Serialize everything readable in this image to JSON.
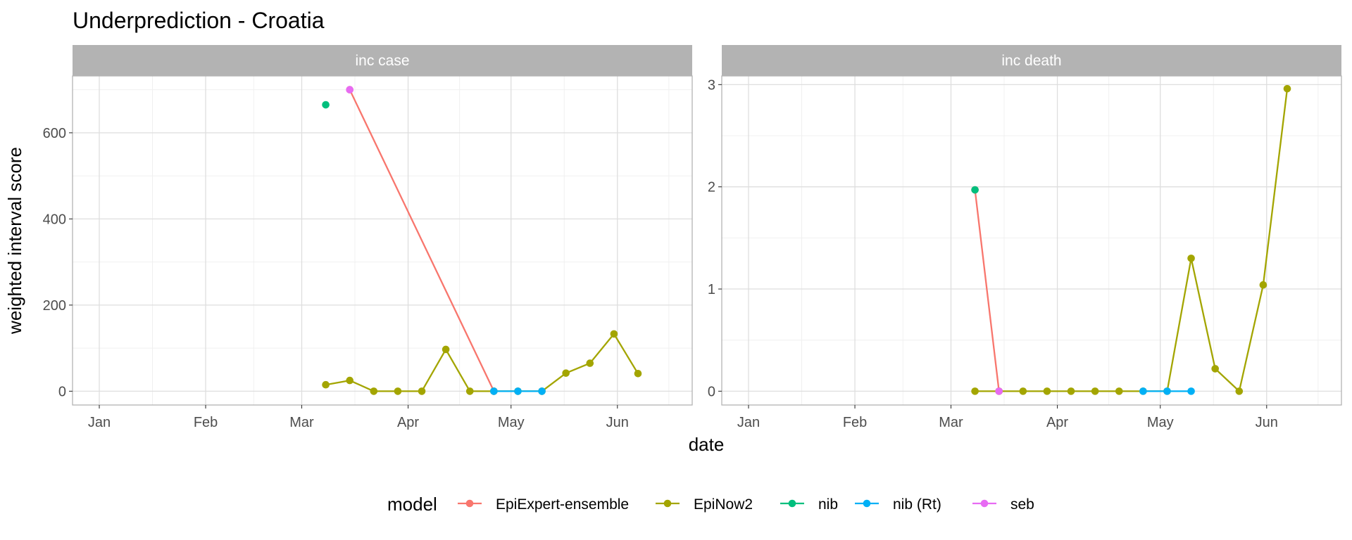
{
  "chart_data": {
    "type": "line",
    "title": "Underprediction - Croatia",
    "xlabel": "date",
    "ylabel": "weighted interval score",
    "x_ticks": [
      "Jan",
      "Feb",
      "Mar",
      "Apr",
      "May",
      "Jun"
    ],
    "x_range": [
      "2021-01-01",
      "2021-06-15"
    ],
    "legend": {
      "title": "model",
      "placement": "bottom",
      "entries": [
        {
          "name": "EpiExpert-ensemble",
          "color": "#F8766D"
        },
        {
          "name": "EpiNow2",
          "color": "#A3A500"
        },
        {
          "name": "nib",
          "color": "#00BF7D"
        },
        {
          "name": "nib (Rt)",
          "color": "#00B0F6"
        },
        {
          "name": "seb",
          "color": "#E76BF3"
        }
      ]
    },
    "grid": true,
    "panels": [
      {
        "label": "inc case",
        "y_ticks": [
          0,
          200,
          400,
          600
        ],
        "ylim": [
          -32,
          732
        ],
        "series": [
          {
            "name": "EpiExpert-ensemble",
            "color": "#F8766D",
            "points": [
              [
                "2021-03-15",
                700
              ],
              [
                "2021-04-26",
                0
              ]
            ]
          },
          {
            "name": "EpiNow2",
            "color": "#A3A500",
            "points": [
              [
                "2021-03-08",
                15
              ],
              [
                "2021-03-15",
                25
              ],
              [
                "2021-03-22",
                0
              ],
              [
                "2021-03-29",
                0
              ],
              [
                "2021-04-05",
                0
              ],
              [
                "2021-04-12",
                97
              ],
              [
                "2021-04-19",
                0
              ],
              [
                "2021-04-26",
                0
              ],
              [
                "2021-05-03",
                0
              ],
              [
                "2021-05-10",
                0
              ],
              [
                "2021-05-17",
                42
              ],
              [
                "2021-05-24",
                65
              ],
              [
                "2021-05-31",
                133
              ],
              [
                "2021-06-07",
                41
              ]
            ]
          },
          {
            "name": "nib",
            "color": "#00BF7D",
            "points": [
              [
                "2021-03-08",
                665
              ]
            ]
          },
          {
            "name": "nib (Rt)",
            "color": "#00B0F6",
            "points": [
              [
                "2021-04-26",
                0
              ],
              [
                "2021-05-03",
                0
              ],
              [
                "2021-05-10",
                0
              ]
            ]
          },
          {
            "name": "seb",
            "color": "#E76BF3",
            "points": [
              [
                "2021-03-15",
                700
              ]
            ]
          }
        ]
      },
      {
        "label": "inc death",
        "y_ticks": [
          0,
          1,
          2,
          3
        ],
        "ylim": [
          -0.135,
          3.085
        ],
        "series": [
          {
            "name": "EpiExpert-ensemble",
            "color": "#F8766D",
            "points": [
              [
                "2021-03-08",
                1.97
              ],
              [
                "2021-03-15",
                0
              ]
            ]
          },
          {
            "name": "EpiNow2",
            "color": "#A3A500",
            "points": [
              [
                "2021-03-08",
                0
              ],
              [
                "2021-03-15",
                0
              ],
              [
                "2021-03-22",
                0
              ],
              [
                "2021-03-29",
                0
              ],
              [
                "2021-04-05",
                0
              ],
              [
                "2021-04-12",
                0
              ],
              [
                "2021-04-19",
                0
              ],
              [
                "2021-04-26",
                0
              ],
              [
                "2021-05-03",
                0
              ],
              [
                "2021-05-10",
                1.3
              ],
              [
                "2021-05-17",
                0.22
              ],
              [
                "2021-05-24",
                0
              ],
              [
                "2021-05-31",
                1.04
              ],
              [
                "2021-06-07",
                2.96
              ]
            ]
          },
          {
            "name": "nib",
            "color": "#00BF7D",
            "points": [
              [
                "2021-03-08",
                1.97
              ]
            ]
          },
          {
            "name": "nib (Rt)",
            "color": "#00B0F6",
            "points": [
              [
                "2021-04-26",
                0
              ],
              [
                "2021-05-03",
                0
              ],
              [
                "2021-05-10",
                0
              ]
            ]
          },
          {
            "name": "seb",
            "color": "#E76BF3",
            "points": [
              [
                "2021-03-15",
                0
              ]
            ]
          }
        ]
      }
    ]
  }
}
